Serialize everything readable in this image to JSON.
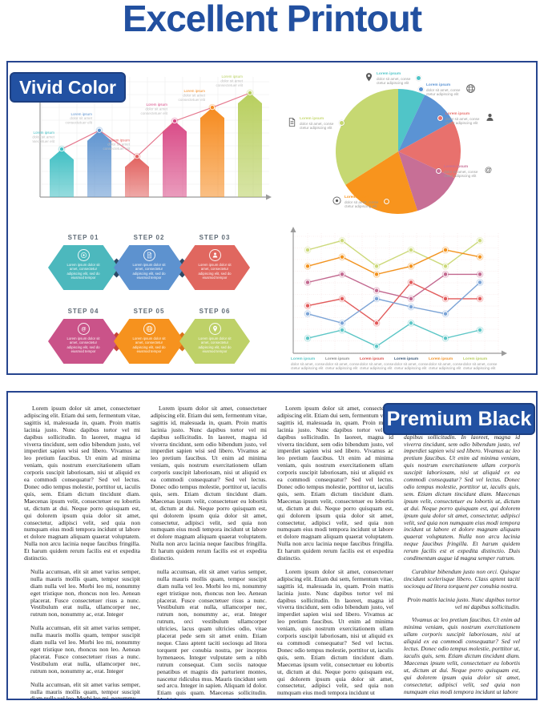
{
  "page_title": "Excellent Printout",
  "colors": {
    "brand_blue": "#2251a2",
    "panel_border": "#26458f",
    "axis_gray": "#9a9a9a"
  },
  "vivid": {
    "badge": "Vivid Color"
  },
  "premium": {
    "badge": "Premium Black"
  },
  "chart_data": [
    {
      "type": "bar",
      "title": "",
      "categories": [
        "",
        "",
        "",
        "",
        "",
        ""
      ],
      "values": [
        46,
        64,
        39,
        73,
        86,
        100
      ],
      "ylim": [
        0,
        100
      ],
      "colors": [
        "#3fbfc3",
        "#5f94d0",
        "#e2625f",
        "#d94b87",
        "#f68b1f",
        "#b8cf5e"
      ],
      "grid": true,
      "line_overlay": true,
      "line_color": "#e0607a",
      "peak_label_lines": [
        "Lorem ipsum",
        "dolor sit amet",
        "consectetuer elit"
      ]
    },
    {
      "type": "pie",
      "title": "",
      "slices": [
        {
          "label": "Lorem ipsum",
          "icon": "pin-icon",
          "percent": 7,
          "color": "#50c5c8"
        },
        {
          "label": "Lorem ipsum",
          "icon": "globe-icon",
          "percent": 10,
          "color": "#5b93d4"
        },
        {
          "label": "Lorem ipsum",
          "icon": "person-icon",
          "percent": 15,
          "color": "#e8716d"
        },
        {
          "label": "Lorem ipsum",
          "icon": "at-icon",
          "percent": 13,
          "color": "#c76f96"
        },
        {
          "label": "Lorem ipsum",
          "icon": "target-icon",
          "percent": 21,
          "color": "#f8941d"
        },
        {
          "label": "Lorem ipsum",
          "icon": "document-icon",
          "percent": 34,
          "color": "#c6d872"
        }
      ],
      "callout_lines": [
        "dolor sit amet, conse",
        "ctetur adipiscing elit"
      ],
      "legend_position": "around"
    },
    {
      "type": "line",
      "title": "",
      "x": [
        1,
        2,
        3,
        4,
        5,
        6
      ],
      "ylim": [
        0,
        100
      ],
      "grid": true,
      "series": [
        {
          "name": "green",
          "color": "#ccd97a",
          "values": [
            89,
            97,
            75,
            89,
            75,
            97
          ]
        },
        {
          "name": "orange",
          "color": "#f2921d",
          "values": [
            75,
            83,
            68,
            75,
            89,
            83
          ]
        },
        {
          "name": "pink",
          "color": "#c2688f",
          "values": [
            61,
            68,
            54,
            47,
            68,
            68
          ]
        },
        {
          "name": "red",
          "color": "#e25b5b",
          "values": [
            41,
            47,
            26,
            61,
            47,
            47
          ]
        },
        {
          "name": "blue",
          "color": "#7ba3d6",
          "values": [
            34,
            26,
            47,
            40,
            34,
            61
          ]
        },
        {
          "name": "teal",
          "color": "#5cc6c6",
          "values": [
            13,
            20,
            6,
            26,
            13,
            20
          ]
        }
      ],
      "x_labels": {
        "title": "Lorem ipsum",
        "lines": [
          "dolor sit amet, conse",
          "ctetur adipiscing elit"
        ],
        "title_colors": [
          "#5cc6c6",
          "#8a8a8a",
          "#d9534f",
          "#3b5878",
          "#f0932b",
          "#b7cb5f"
        ]
      }
    }
  ],
  "steps": {
    "body_text": "Lorem ipsum dolor sit amet, consectetur adipiscing elit, sed do eiusmod tempor",
    "items": [
      {
        "label": "STEP 01",
        "color": "#4cb8bd",
        "icon": "target-icon"
      },
      {
        "label": "STEP 02",
        "color": "#5d92cf",
        "icon": "document-icon"
      },
      {
        "label": "STEP 03",
        "color": "#e0675f",
        "icon": "person-icon"
      },
      {
        "label": "STEP 04",
        "color": "#ca5389",
        "icon": "at-icon"
      },
      {
        "label": "STEP 05",
        "color": "#f6921e",
        "icon": "globe-icon"
      },
      {
        "label": "STEP 06",
        "color": "#bed168",
        "icon": "pin-icon"
      }
    ],
    "connector_colors": [
      "#2e4a66",
      "#2e4a66",
      "#c8443c",
      "#d9731c"
    ]
  },
  "premium_columns": [
    {
      "style": "normal",
      "paragraphs": [
        {
          "text": "Lorem ipsum dolor sit amet, consectetuer adipiscing elit. Etiam dui sem, fermentum vitae, sagittis id, malesuada in, quam. Proin mattis lacinia justo. Nunc dapibus tortor vel mi dapibus sollicitudin. In laoreet, magna id viverra tincidunt, sem odio bibendum justo, vel imperdiet sapien wisi sed libero. Vivamus ac leo pretium faucibus. Ut enim ad minima veniam, quis nostrum exercitationem ullam corporis suscipit laboriosam, nisi ut aliquid ex ea commodi consequatur? Sed vel lectus. Donec odio tempus molestie, porttitor ut, iaculis quis, sem. Etiam dictum tincidunt diam. Maecenas ipsum velit, consectetuer eu lobortis ut, dictum at dui. Neque porro quisquam est, qui dolorem ipsum quia dolor sit amet, consectetur, adipisci velit, sed quia non numquam eius modi tempora incidunt ut labore et dolore magnam aliquam quaerat voluptatem. Nulla non arcu lacinia neque faucibus fringilla. Et harum quidem rerum facilis est et expedita distinctio."
        },
        {
          "text": "Nulla accumsan, elit sit amet varius semper, nulla mauris mollis quam, tempor suscipit diam nulla vel leo. Morbi leo mi, nonummy eget tristique non, rhoncus non leo. Aenean placerat. Fusce consectetuer risus a nunc. Vestibulum erat nulla, ullamcorper nec, rutrum non, nonummy ac, erat. Integer",
          "class": "indent"
        },
        {
          "text": "Nulla accumsan, elit sit amet varius semper, nulla mauris mollis quam, tempor suscipit diam nulla vel leo. Morbi leo mi, nonummy eget tristique non, rhoncus non leo. Aenean placerat. Fusce consectetuer risus a nunc. Vestibulum erat nulla, ullamcorper nec, rutrum non, nonummy ac, erat. Integer",
          "class": "indent"
        },
        {
          "text": "Nulla accumsan, elit sit amet varius semper, nulla mauris mollis quam, tempor suscipit diam nulla vel leo. Morbi leo mi, nonummy",
          "class": "indent"
        }
      ]
    },
    {
      "style": "normal",
      "paragraphs": [
        {
          "text": "Lorem ipsum dolor sit amet, consectetuer adipiscing elit. Etiam dui sem, fermentum vitae, sagittis id, malesuada in, quam. Proin mattis lacinia justo. Nunc dapibus tortor vel mi dapibus sollicitudin. In laoreet, magna id viverra tincidunt, sem odio bibendum justo, vel imperdiet sapien wisi sed libero. Vivamus ac leo pretium faucibus. Ut enim ad minima veniam, quis nostrum exercitationem ullam corporis suscipit laboriosam, nisi ut aliquid ex ea commodi consequatur? Sed vel lectus. Donec odio tempus molestie, porttitor ut, iaculis quis, sem. Etiam dictum tincidunt diam. Maecenas ipsum velit, consectetuer eu lobortis ut, dictum at dui. Neque porro quisquam est, qui dolorem ipsum quia dolor sit amet, consectetur, adipisci velit, sed quia non numquam eius modi tempora incidunt ut labore et dolore magnam aliquam quaerat voluptatem. Nulla non arcu lacinia neque faucibus fringilla. Et harum quidem rerum facilis est et expedita distinctio."
        },
        {
          "text": "nulla accumsan, elit sit amet varius semper, nulla mauris mollis quam, tempor suscipit diam nulla vel leo. Morbi leo mi, nonummy eget tristique non, rhoncus non leo. Aenean placerat. Fusce consectetuer risus a nunc. Vestibulum erat nulla, ullamcorper nec, rutrum non, nonummy ac, erat. Integer rutrum, orci vestibulum ullamcorper ultricies, lacus quam ultricies odio, vitae placerat pede sem sit amet enim. Etiam neque. Class aptent taciti sociosqu ad litora torquent per conubia nostra, per inceptos hymenaeos. Integer vulputate sem a nibh rutrum consequat. Cum sociis natoque penatibus et magnis dis parturient montes, nascetur ridiculus mus. Mauris tincidunt sem sed arcu. Integer in sapien. Aliquam id dolor. Etiam quis quam. Maecenas sollicitudin. Morbi leo mi, nonummy eget tristique non, rhoncus",
          "class": "indent"
        }
      ]
    },
    {
      "style": "normal",
      "paragraphs": [
        {
          "text": "Lorem ipsum dolor sit amet, consectetuer adipiscing elit. Etiam dui sem, fermentum vitae, sagittis id, malesuada in, quam. Proin mattis lacinia justo. Nunc dapibus tortor vel mi dapibus sollicitudin. In laoreet, magna id viverra tincidunt, sem odio bibendum justo, vel imperdiet sapien wisi sed libero. Vivamus ac leo pretium faucibus. Ut enim ad minima veniam, quis nostrum exercitationem ullam corporis suscipit laboriosam, nisi ut aliquid ex ea commodi consequatur? Sed vel lectus. Donec odio tempus molestie, porttitor ut, iaculis quis, sem. Etiam dictum tincidunt diam. Maecenas ipsum velit, consectetuer eu lobortis ut, dictum at dui. Neque porro quisquam est, qui dolorem ipsum quia dolor sit amet, consectetur, adipisci velit, sed quia non numquam eius modi tempora incidunt ut labore et dolore magnam aliquam quaerat voluptatem. Nulla non arcu lacinia neque faucibus fringilla. Et harum quidem rerum facilis est et expedita distinctio."
        },
        {
          "text": "Lorem ipsum dolor sit amet, consectetuer adipiscing elit. Etiam dui sem, fermentum vitae, sagittis id, malesuada in, quam. Proin mattis lacinia justo. Nunc dapibus tortor vel mi dapibus sollicitudin. In laoreet, magna id viverra tincidunt, sem odio bibendum justo, vel imperdiet sapien wisi sed libero. Vivamus ac leo pretium faucibus. Ut enim ad minima veniam, quis nostrum exercitationem ullam corporis suscipit laboriosam, nisi ut aliquid ex ea commodi consequatur? Sed vel lectus. Donec odio tempus molestie, porttitor ut, iaculis quis, sem. Etiam dictum tincidunt diam. Maecenas ipsum velit, consectetuer eu lobortis ut, dictum at dui. Neque porro quisquam est, qui dolorem ipsum quia dolor sit amet, consectetur, adipisci velit, sed quia non numquam eius modi tempora incidunt ut"
        }
      ]
    },
    {
      "style": "italic",
      "paragraphs": [
        {
          "text": "Lorem ipsum dolor sit amet, consectetuer adipiscing elit. Etiam dui sem, fermentum vitae, sagittis id, malesuada in, quam. Proin mattis lacinia justo. Nunc dapibus tortor vel mi dapibus sollicitudin. In laoreet, magna id viverra tincidunt, sem odio bibendum justo, vel imperdiet sapien wisi sed libero. Vivamus ac leo pretium faucibus. Ut enim ad minima veniam, quis nostrum exercitationem ullam corporis suscipit laboriosam, nisi ut aliquid ex ea commodi consequatur? Sed vel lectus. Donec odio tempus molestie, porttitor ut, iaculis quis, sem. Etiam dictum tincidunt diam. Maecenas ipsum velit, consectetuer eu lobortis ut, dictum at dui. Neque porro quisquam est, qui dolorem ipsum quia dolor sit amet, consectetur, adipisci velit, sed quia non numquam eius modi tempora incidunt ut labore et dolore magnam aliquam quaerat voluptatem. Nulla non arcu lacinia neque faucibus fringilla. Et harum quidem rerum facilis est et expedita distinctio. Duis condimentum augue id magna semper rutrum."
        },
        {
          "text": "Curabitur bibendum justo non orci. Quisque tincidunt scelerisque libero. Class aptent taciti sociosqu ad litora torquent per conubia nostra."
        },
        {
          "text": "Proin mattis lacinia justo. Nunc dapibus tortor vel mi dapibus sollicitudin.",
          "class": "right"
        },
        {
          "text": "Vivamus ac leo pretium faucibus. Ut enim ad minima veniam, quis nostrum exercitationem ullam corporis suscipit laboriosam, nisi ut aliquid ex ea commodi consequatur? Sed vel lectus. Donec odio tempus molestie, porttitor ut, iaculis quis, sem. Etiam dictum tincidunt diam. Maecenas ipsum velit, consectetuer eu lobortis ut, dictum at dui. Neque porro quisquam est, qui dolorem ipsum quia dolor sit amet, consectetur, adipisci velit, sed quia non numquam eius modi tempora incidunt ut labore"
        }
      ]
    }
  ]
}
